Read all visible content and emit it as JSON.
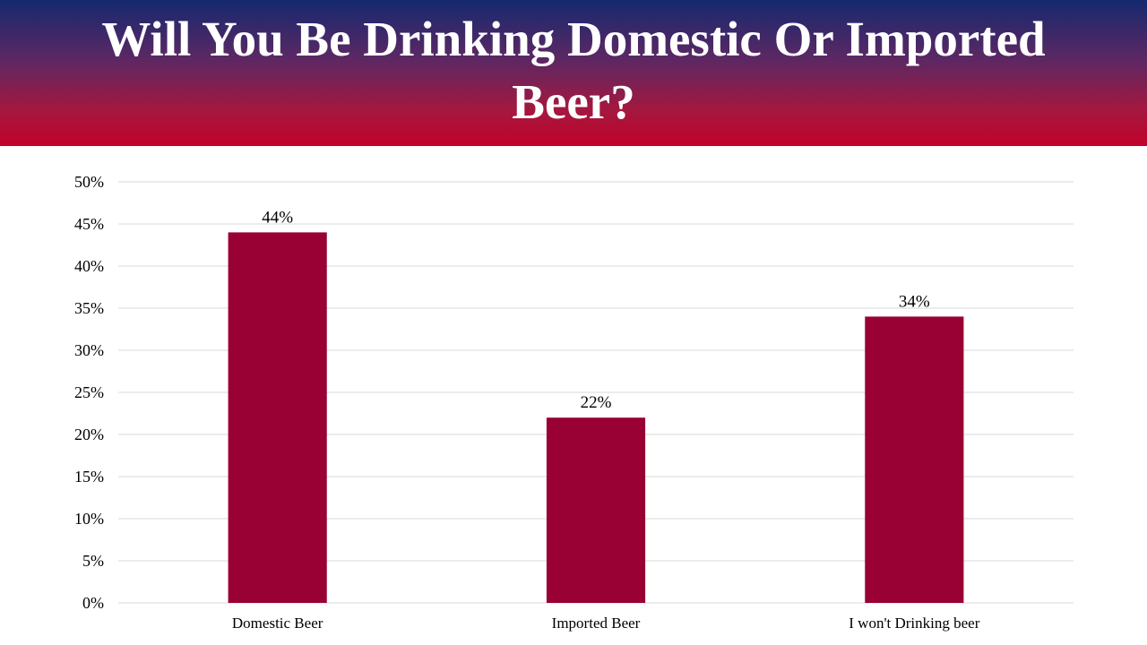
{
  "header": {
    "title": "Will You Be Drinking Domestic Or Imported Beer?"
  },
  "colors": {
    "bar": "#990033",
    "grid": "#d9d9d9",
    "header_top": "#15296f",
    "header_bottom": "#c2022a"
  },
  "chart_data": {
    "type": "bar",
    "title": "Will You Be Drinking Domestic Or Imported Beer?",
    "categories": [
      "Domestic Beer",
      "Imported Beer",
      "I won't Drinking beer"
    ],
    "values": [
      44,
      22,
      34
    ],
    "value_labels": [
      "44%",
      "22%",
      "34%"
    ],
    "ylim": [
      0,
      50
    ],
    "y_ticks": [
      0,
      5,
      10,
      15,
      20,
      25,
      30,
      35,
      40,
      45,
      50
    ],
    "y_tick_labels": [
      "0%",
      "5%",
      "10%",
      "15%",
      "20%",
      "25%",
      "30%",
      "35%",
      "40%",
      "45%",
      "50%"
    ],
    "xlabel": "",
    "ylabel": "",
    "grid": true,
    "legend": "none"
  }
}
